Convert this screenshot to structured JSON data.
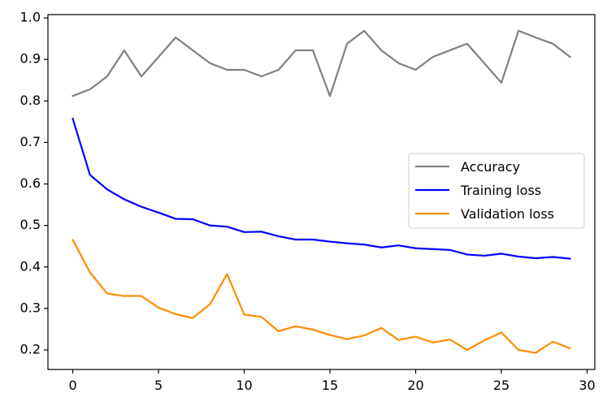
{
  "chart_data": {
    "type": "line",
    "title": "",
    "xlabel": "",
    "ylabel": "",
    "xlim": [
      -1.45,
      30.45
    ],
    "ylim": [
      0.153,
      1.008
    ],
    "xticks": [
      0,
      5,
      10,
      15,
      20,
      25,
      30
    ],
    "yticks": [
      0.2,
      0.3,
      0.4,
      0.5,
      0.6,
      0.7,
      0.8,
      0.9,
      1.0
    ],
    "xtick_labels": [
      "0",
      "5",
      "10",
      "15",
      "20",
      "25",
      "30"
    ],
    "ytick_labels": [
      "0.2",
      "0.3",
      "0.4",
      "0.5",
      "0.6",
      "0.7",
      "0.8",
      "0.9",
      "1.0"
    ],
    "grid": false,
    "legend_position": "right",
    "x": [
      0,
      1,
      2,
      3,
      4,
      5,
      6,
      7,
      8,
      9,
      10,
      11,
      12,
      13,
      14,
      15,
      16,
      17,
      18,
      19,
      20,
      21,
      22,
      23,
      24,
      25,
      26,
      27,
      28,
      29
    ],
    "series": [
      {
        "name": "Accuracy",
        "color": "#808080",
        "values": [
          0.812,
          0.828,
          0.859,
          0.922,
          0.859,
          0.906,
          0.953,
          0.922,
          0.891,
          0.875,
          0.875,
          0.859,
          0.875,
          0.922,
          0.922,
          0.812,
          0.938,
          0.969,
          0.922,
          0.891,
          0.875,
          0.906,
          0.922,
          0.938,
          0.891,
          0.844,
          0.969,
          0.953,
          0.938,
          0.906
        ]
      },
      {
        "name": "Training loss",
        "color": "#0000ff",
        "values": [
          0.757,
          0.622,
          0.587,
          0.563,
          0.545,
          0.531,
          0.516,
          0.515,
          0.5,
          0.497,
          0.484,
          0.485,
          0.474,
          0.466,
          0.466,
          0.461,
          0.457,
          0.454,
          0.447,
          0.452,
          0.445,
          0.443,
          0.441,
          0.43,
          0.427,
          0.432,
          0.425,
          0.421,
          0.424,
          0.42
        ]
      },
      {
        "name": "Validation loss",
        "color": "#ff8c00",
        "values": [
          0.465,
          0.387,
          0.336,
          0.33,
          0.33,
          0.302,
          0.286,
          0.277,
          0.31,
          0.383,
          0.285,
          0.28,
          0.245,
          0.257,
          0.249,
          0.236,
          0.226,
          0.235,
          0.253,
          0.224,
          0.232,
          0.218,
          0.225,
          0.2,
          0.223,
          0.242,
          0.2,
          0.193,
          0.22,
          0.204
        ]
      }
    ]
  }
}
